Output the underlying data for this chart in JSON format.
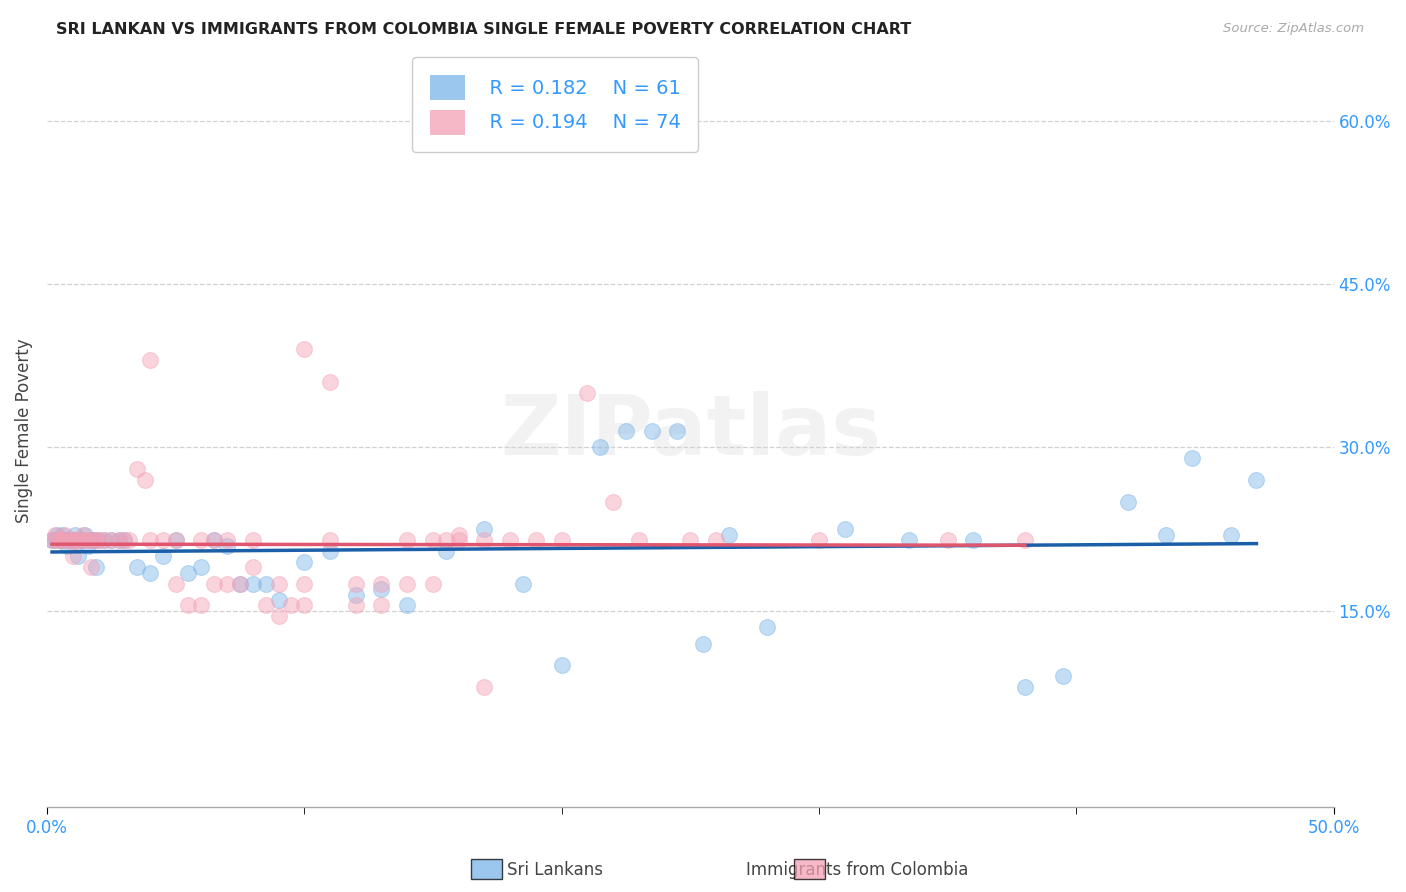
{
  "title": "SRI LANKAN VS IMMIGRANTS FROM COLOMBIA SINGLE FEMALE POVERTY CORRELATION CHART",
  "source": "Source: ZipAtlas.com",
  "ylabel": "Single Female Poverty",
  "y_ticks": [
    0.15,
    0.3,
    0.45,
    0.6
  ],
  "xlim": [
    0.0,
    0.5
  ],
  "ylim": [
    -0.03,
    0.66
  ],
  "legend_blue_r": "R = 0.182",
  "legend_blue_n": "N = 61",
  "legend_pink_r": "R = 0.194",
  "legend_pink_n": "N = 74",
  "legend_label_blue": "Sri Lankans",
  "legend_label_pink": "Immigrants from Colombia",
  "blue_color": "#7ab4e8",
  "pink_color": "#f4a0b5",
  "trend_blue_color": "#1a5fa8",
  "trend_pink_color": "#e0566e",
  "blue_x": [
    0.002,
    0.003,
    0.004,
    0.005,
    0.006,
    0.007,
    0.008,
    0.009,
    0.01,
    0.011,
    0.012,
    0.013,
    0.014,
    0.015,
    0.016,
    0.017,
    0.018,
    0.019,
    0.02,
    0.022,
    0.025,
    0.028,
    0.03,
    0.035,
    0.04,
    0.045,
    0.05,
    0.055,
    0.06,
    0.065,
    0.07,
    0.075,
    0.08,
    0.085,
    0.09,
    0.1,
    0.11,
    0.12,
    0.13,
    0.14,
    0.155,
    0.17,
    0.185,
    0.2,
    0.215,
    0.225,
    0.235,
    0.245,
    0.255,
    0.265,
    0.28,
    0.31,
    0.335,
    0.36,
    0.38,
    0.395,
    0.42,
    0.435,
    0.445,
    0.46,
    0.47
  ],
  "blue_y": [
    0.215,
    0.215,
    0.22,
    0.215,
    0.22,
    0.215,
    0.21,
    0.215,
    0.215,
    0.22,
    0.2,
    0.215,
    0.215,
    0.22,
    0.21,
    0.215,
    0.215,
    0.19,
    0.215,
    0.215,
    0.215,
    0.215,
    0.215,
    0.19,
    0.185,
    0.2,
    0.215,
    0.185,
    0.19,
    0.215,
    0.21,
    0.175,
    0.175,
    0.175,
    0.16,
    0.195,
    0.205,
    0.165,
    0.17,
    0.155,
    0.205,
    0.225,
    0.175,
    0.1,
    0.3,
    0.315,
    0.315,
    0.315,
    0.12,
    0.22,
    0.135,
    0.225,
    0.215,
    0.215,
    0.08,
    0.09,
    0.25,
    0.22,
    0.29,
    0.22,
    0.27
  ],
  "pink_x": [
    0.002,
    0.003,
    0.004,
    0.005,
    0.006,
    0.007,
    0.008,
    0.009,
    0.01,
    0.011,
    0.012,
    0.013,
    0.014,
    0.015,
    0.016,
    0.017,
    0.018,
    0.019,
    0.02,
    0.022,
    0.025,
    0.028,
    0.03,
    0.032,
    0.035,
    0.038,
    0.04,
    0.045,
    0.05,
    0.055,
    0.06,
    0.065,
    0.07,
    0.075,
    0.08,
    0.085,
    0.09,
    0.095,
    0.1,
    0.11,
    0.12,
    0.13,
    0.14,
    0.15,
    0.155,
    0.16,
    0.17,
    0.04,
    0.1,
    0.11,
    0.05,
    0.06,
    0.065,
    0.07,
    0.08,
    0.09,
    0.1,
    0.12,
    0.13,
    0.14,
    0.15,
    0.16,
    0.17,
    0.18,
    0.19,
    0.2,
    0.21,
    0.22,
    0.23,
    0.25,
    0.26,
    0.3,
    0.35,
    0.38
  ],
  "pink_y": [
    0.215,
    0.22,
    0.215,
    0.215,
    0.215,
    0.22,
    0.215,
    0.215,
    0.2,
    0.215,
    0.215,
    0.215,
    0.22,
    0.215,
    0.215,
    0.19,
    0.215,
    0.215,
    0.215,
    0.215,
    0.215,
    0.215,
    0.215,
    0.215,
    0.28,
    0.27,
    0.215,
    0.215,
    0.175,
    0.155,
    0.155,
    0.175,
    0.215,
    0.175,
    0.19,
    0.155,
    0.145,
    0.155,
    0.155,
    0.215,
    0.155,
    0.155,
    0.215,
    0.215,
    0.215,
    0.22,
    0.08,
    0.38,
    0.39,
    0.36,
    0.215,
    0.215,
    0.215,
    0.175,
    0.215,
    0.175,
    0.175,
    0.175,
    0.175,
    0.175,
    0.175,
    0.215,
    0.215,
    0.215,
    0.215,
    0.215,
    0.35,
    0.25,
    0.215,
    0.215,
    0.215,
    0.215,
    0.215,
    0.215
  ],
  "marker_size": 130,
  "marker_aspect": 0.65
}
